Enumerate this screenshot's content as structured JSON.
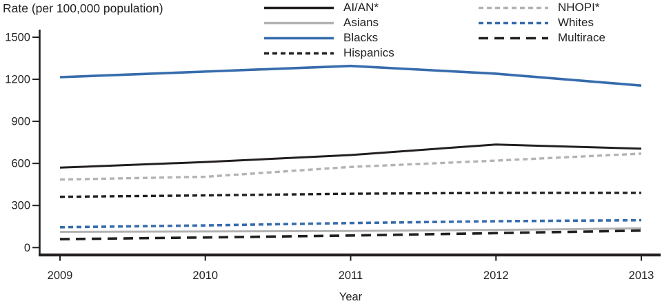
{
  "chart_data": {
    "type": "line",
    "title": "Rate (per 100,000 population)",
    "xlabel": "Year",
    "ylabel": "Rate (per 100,000 population)",
    "x": [
      2009,
      2010,
      2011,
      2012,
      2013
    ],
    "yticks": [
      0,
      300,
      600,
      900,
      1200,
      1500
    ],
    "ylim": [
      0,
      1500
    ],
    "grid": false,
    "legend_position": "top",
    "axis_color": "#231f20",
    "palette": {
      "black": "#231f20",
      "gray": "#b3b3b3",
      "blue": "#376cad"
    },
    "series": [
      {
        "name": "AI/AN*",
        "color": "#231f20",
        "dash": "solid",
        "width": 3.0,
        "values": [
          570,
          610,
          660,
          735,
          705
        ]
      },
      {
        "name": "Asians",
        "color": "#b3b3b3",
        "dash": "solid",
        "width": 3.0,
        "values": [
          112,
          115,
          118,
          126,
          137
        ]
      },
      {
        "name": "Blacks",
        "color": "#376cad",
        "dash": "solid",
        "width": 3.6,
        "values": [
          1215,
          1255,
          1295,
          1240,
          1155
        ]
      },
      {
        "name": "Hispanics",
        "color": "#231f20",
        "dash": "dash",
        "width": 3.4,
        "values": [
          362,
          372,
          384,
          390,
          390
        ]
      },
      {
        "name": "NHOPI*",
        "color": "#b3b3b3",
        "dash": "dash",
        "width": 3.4,
        "values": [
          485,
          505,
          575,
          620,
          670
        ]
      },
      {
        "name": "Whites",
        "color": "#376cad",
        "dash": "dash",
        "width": 3.6,
        "values": [
          145,
          158,
          175,
          188,
          195
        ]
      },
      {
        "name": "Multirace",
        "color": "#231f20",
        "dash": "longdash",
        "width": 3.6,
        "values": [
          60,
          72,
          86,
          103,
          121
        ]
      }
    ]
  }
}
